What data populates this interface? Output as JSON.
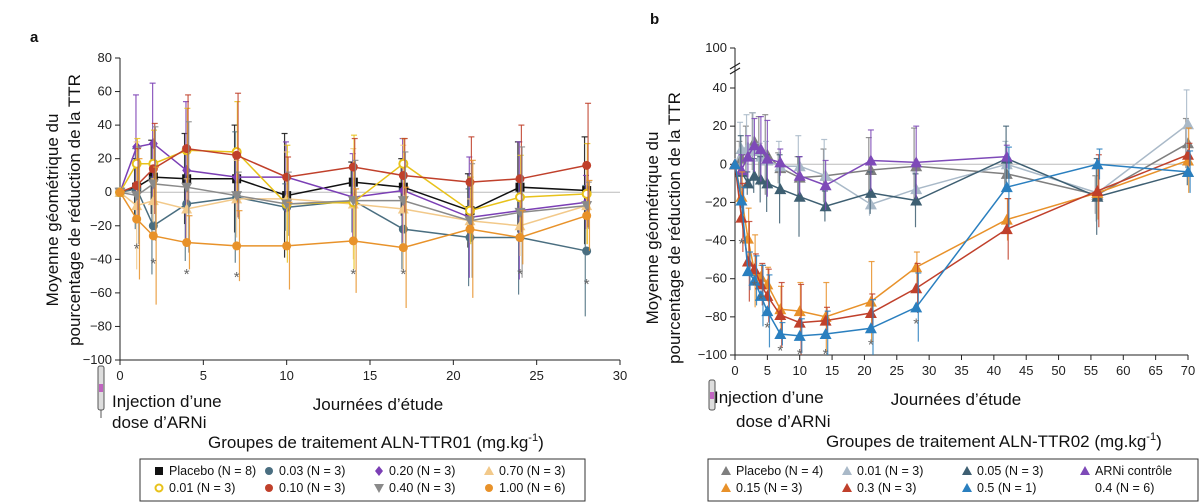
{
  "chart_data": [
    {
      "panel_label": "a",
      "type": "line",
      "ylabel_line1": "Moyenne géométrique du",
      "ylabel_line2": "pourcentage de réduction de la TTR",
      "xlabel": "Journées d’étude",
      "group_title": "Groupes de traitement ALN-TTR01 (mg.kg",
      "group_title_sup": "-1",
      "group_title_end": ")",
      "injection_label_line1": "Injection d’une",
      "injection_label_line2": "dose d’ARNi",
      "xlim": [
        0,
        30
      ],
      "ylim": [
        -100,
        80
      ],
      "xticks": [
        0,
        5,
        10,
        15,
        20,
        25,
        30
      ],
      "yticks": [
        -100,
        -80,
        -60,
        -40,
        -20,
        0,
        20,
        40,
        60,
        80
      ],
      "significance_mark": "*",
      "significance_points": [
        [
          1,
          -33
        ],
        [
          2,
          -42
        ],
        [
          4,
          -48
        ],
        [
          7,
          -50
        ],
        [
          14,
          -48
        ],
        [
          17,
          -48
        ],
        [
          24,
          -48
        ],
        [
          28,
          -54
        ]
      ],
      "series": [
        {
          "name": "Placebo (N = 8)",
          "marker": "square",
          "color": "#111111",
          "x": [
            0,
            1,
            2,
            4,
            7,
            10,
            14,
            17,
            21,
            24,
            28
          ],
          "y": [
            0,
            3,
            9,
            8,
            8,
            -2,
            6,
            3,
            -11,
            3,
            1
          ]
        },
        {
          "name": "0.03 (N = 3)",
          "marker": "circle",
          "color": "#4a6e80",
          "x": [
            0,
            1,
            2,
            4,
            7,
            10,
            14,
            17,
            21,
            24,
            28
          ],
          "y": [
            0,
            2,
            -20,
            -7,
            -3,
            -9,
            -5,
            -22,
            -27,
            -27,
            -35
          ]
        },
        {
          "name": "0.20 (N = 3)",
          "marker": "diamond",
          "color": "#7b3fb5",
          "x": [
            0,
            1,
            2,
            4,
            7,
            10,
            14,
            17,
            21,
            24,
            28
          ],
          "y": [
            0,
            27,
            29,
            13,
            9,
            9,
            -3,
            1,
            -15,
            -11,
            -6
          ]
        },
        {
          "name": "0.70 (N = 3)",
          "marker": "triangle",
          "color": "#f2c98a",
          "x": [
            0,
            1,
            2,
            4,
            7,
            10,
            14,
            17,
            21,
            24,
            28
          ],
          "y": [
            0,
            -8,
            -5,
            -10,
            -4,
            -4,
            -7,
            -10,
            -17,
            -20,
            -8
          ]
        },
        {
          "name": "0.01 (N = 3)",
          "marker": "open-circle",
          "color": "#e8c21a",
          "x": [
            0,
            1,
            2,
            4,
            7,
            10,
            14,
            17,
            21,
            24,
            28
          ],
          "y": [
            0,
            17,
            17,
            25,
            24,
            -7,
            -6,
            17,
            -11,
            -3,
            -1
          ]
        },
        {
          "name": "0.10 (N = 3)",
          "marker": "circle",
          "color": "#c0402b",
          "x": [
            0,
            1,
            2,
            4,
            7,
            10,
            14,
            17,
            21,
            24,
            28
          ],
          "y": [
            0,
            4,
            14,
            26,
            22,
            9,
            15,
            10,
            6,
            8,
            16
          ]
        },
        {
          "name": "0.40 (N = 3)",
          "marker": "triangle-down",
          "color": "#8a8a8a",
          "x": [
            0,
            1,
            2,
            4,
            7,
            10,
            14,
            17,
            21,
            24,
            28
          ],
          "y": [
            0,
            -2,
            5,
            3,
            -2,
            -7,
            -5,
            -5,
            -17,
            -12,
            -8
          ]
        },
        {
          "name": "1.00 (N = 6)",
          "marker": "circle",
          "color": "#e8922a",
          "x": [
            0,
            1,
            2,
            4,
            7,
            10,
            14,
            17,
            21,
            24,
            28
          ],
          "y": [
            0,
            -16,
            -26,
            -30,
            -32,
            -32,
            -29,
            -33,
            -22,
            -27,
            -14
          ]
        }
      ]
    },
    {
      "panel_label": "b",
      "type": "line",
      "ylabel_line1": "Moyenne géométrique du",
      "ylabel_line2": "pourcentage de réduction de la TTR",
      "xlabel": "Journées d’étude",
      "group_title": "Groupes de traitement ALN-TTR02 (mg.kg",
      "group_title_sup": "-1",
      "group_title_end": ")",
      "injection_label_line1": "Injection d’une",
      "injection_label_line2": "dose d’ARNi",
      "xlim": [
        0,
        70
      ],
      "ylim": [
        -100,
        100
      ],
      "xticks": [
        0,
        5,
        10,
        15,
        20,
        25,
        30,
        35,
        40,
        45,
        50,
        55,
        60,
        65,
        70
      ],
      "yticks": [
        -100,
        -80,
        -60,
        -40,
        -20,
        0,
        20,
        40,
        60,
        80,
        100
      ],
      "yticks_shown": [
        -100,
        -80,
        -60,
        -40,
        -20,
        0,
        20,
        40,
        100
      ],
      "significance_mark": "*",
      "significance_points": [
        [
          1,
          -41
        ],
        [
          3,
          -63
        ],
        [
          4,
          -70
        ],
        [
          5,
          -85
        ],
        [
          7,
          -97
        ],
        [
          10,
          -99
        ],
        [
          14,
          -99
        ],
        [
          21,
          -94
        ],
        [
          28,
          -83
        ]
      ],
      "series": [
        {
          "name": "Placebo (N = 4)",
          "marker": "triangle",
          "color": "#7f7f7f",
          "x": [
            0,
            1,
            2,
            3,
            4,
            5,
            7,
            10,
            14,
            21,
            28,
            42,
            56,
            70
          ],
          "y": [
            0,
            3,
            8,
            12,
            7,
            5,
            -2,
            -7,
            -6,
            -3,
            -1,
            -5,
            -16,
            11
          ]
        },
        {
          "name": "0.01 (N = 3)",
          "marker": "triangle",
          "color": "#a9b9c8",
          "x": [
            0,
            1,
            2,
            3,
            4,
            5,
            7,
            10,
            14,
            21,
            28,
            42,
            56,
            70
          ],
          "y": [
            0,
            8,
            9,
            7,
            4,
            2,
            -1,
            -1,
            -6,
            -21,
            -13,
            0,
            -15,
            21
          ]
        },
        {
          "name": "0.05 (N = 3)",
          "marker": "triangle",
          "color": "#3e5f72",
          "x": [
            0,
            1,
            2,
            3,
            4,
            5,
            7,
            10,
            14,
            21,
            28,
            42,
            56,
            70
          ],
          "y": [
            0,
            -4,
            -10,
            -6,
            -8,
            -10,
            -13,
            -17,
            -22,
            -15,
            -19,
            3,
            -17,
            -4
          ]
        },
        {
          "name": "ARNi contrôle 0.4 (N = 6)",
          "marker": "triangle",
          "color": "#7e4ab8",
          "x": [
            0,
            1,
            2,
            3,
            4,
            5,
            7,
            10,
            14,
            21,
            28,
            42
          ],
          "y": [
            0,
            -3,
            4,
            10,
            8,
            3,
            1,
            -6,
            -11,
            2,
            1,
            4
          ]
        },
        {
          "name": "0.15 (N = 3)",
          "marker": "triangle",
          "color": "#e8912a",
          "x": [
            0,
            1,
            2,
            3,
            4,
            5,
            7,
            10,
            14,
            21,
            28,
            42,
            56,
            70
          ],
          "y": [
            0,
            -17,
            -39,
            -56,
            -59,
            -63,
            -76,
            -77,
            -80,
            -72,
            -54,
            -29,
            -15,
            2
          ]
        },
        {
          "name": "0.3 (N = 3)",
          "marker": "triangle",
          "color": "#c0402b",
          "x": [
            0,
            1,
            2,
            3,
            4,
            5,
            7,
            10,
            14,
            21,
            28,
            42,
            56,
            70
          ],
          "y": [
            0,
            -28,
            -51,
            -55,
            -63,
            -69,
            -79,
            -83,
            -82,
            -78,
            -65,
            -34,
            -14,
            5
          ]
        },
        {
          "name": "0.5 (N = 1)",
          "marker": "triangle",
          "color": "#2a7fbf",
          "x": [
            0,
            1,
            2,
            3,
            4,
            5,
            7,
            10,
            14,
            21,
            28,
            42,
            56,
            70
          ],
          "y": [
            0,
            -19,
            -56,
            -61,
            -69,
            -77,
            -89,
            -90,
            -89,
            -86,
            -75,
            -12,
            0,
            -4
          ]
        }
      ]
    }
  ]
}
